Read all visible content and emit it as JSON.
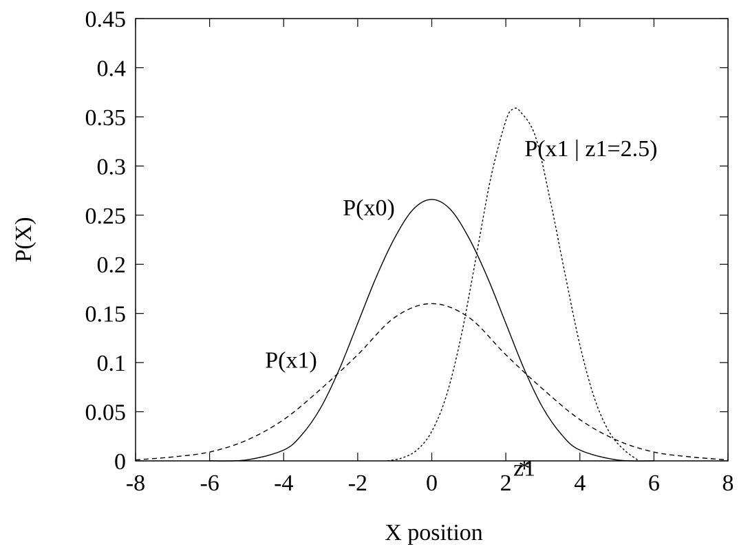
{
  "chart_data": {
    "type": "line",
    "title": "",
    "xlabel": "X position",
    "ylabel": "P(X)",
    "xlim": [
      -8,
      8
    ],
    "ylim": [
      0,
      0.45
    ],
    "x_ticks": [
      -8,
      -6,
      -4,
      -2,
      0,
      2,
      4,
      6,
      8
    ],
    "y_ticks": [
      0,
      0.05,
      0.1,
      0.15,
      0.2,
      0.25,
      0.3,
      0.35,
      0.4,
      0.45
    ],
    "grid": false,
    "series": [
      {
        "name": "P(x0)",
        "line_style": "solid",
        "color": "#000000",
        "x": [
          -6,
          -5,
          -4,
          -3.5,
          -3,
          -2.5,
          -2,
          -1.5,
          -1,
          -0.5,
          0,
          0.5,
          1,
          1.5,
          2,
          2.5,
          3,
          3.5,
          4,
          5,
          6
        ],
        "values": [
          0.0,
          0.001,
          0.011,
          0.027,
          0.054,
          0.093,
          0.14,
          0.187,
          0.227,
          0.256,
          0.266,
          0.256,
          0.227,
          0.187,
          0.14,
          0.093,
          0.054,
          0.027,
          0.011,
          0.001,
          0.0
        ]
      },
      {
        "name": "P(x1)",
        "line_style": "dashed",
        "color": "#000000",
        "x": [
          -8,
          -7,
          -6,
          -5,
          -4,
          -3,
          -2,
          -1,
          0,
          1,
          2,
          3,
          4,
          5,
          6,
          7,
          8
        ],
        "values": [
          0.001,
          0.004,
          0.009,
          0.021,
          0.042,
          0.073,
          0.108,
          0.146,
          0.16,
          0.146,
          0.108,
          0.073,
          0.042,
          0.021,
          0.009,
          0.004,
          0.001
        ]
      },
      {
        "name": "P(x1 | z1=2.5)",
        "line_style": "dotted",
        "color": "#000000",
        "x": [
          -1.2,
          -0.8,
          -0.4,
          0,
          0.4,
          0.8,
          1.2,
          1.6,
          2.0,
          2.2,
          2.4,
          2.8,
          3.2,
          3.6,
          4.0,
          4.4,
          4.8,
          5.2,
          5.6
        ],
        "values": [
          0.0,
          0.003,
          0.011,
          0.03,
          0.067,
          0.128,
          0.208,
          0.289,
          0.346,
          0.358,
          0.355,
          0.33,
          0.265,
          0.19,
          0.118,
          0.063,
          0.029,
          0.011,
          0.0
        ]
      }
    ],
    "annotations": [
      {
        "text": "P(x0)",
        "x": -1.7,
        "y": 0.25
      },
      {
        "text": "P(x1)",
        "x": -3.8,
        "y": 0.095
      },
      {
        "text": "P(x1 | z1=2.5)",
        "x": 4.3,
        "y": 0.31
      },
      {
        "text": "z1",
        "x": 2.5,
        "y": -0.015
      }
    ],
    "marker": {
      "symbol": "*",
      "x": 2.5,
      "y": 0
    }
  }
}
